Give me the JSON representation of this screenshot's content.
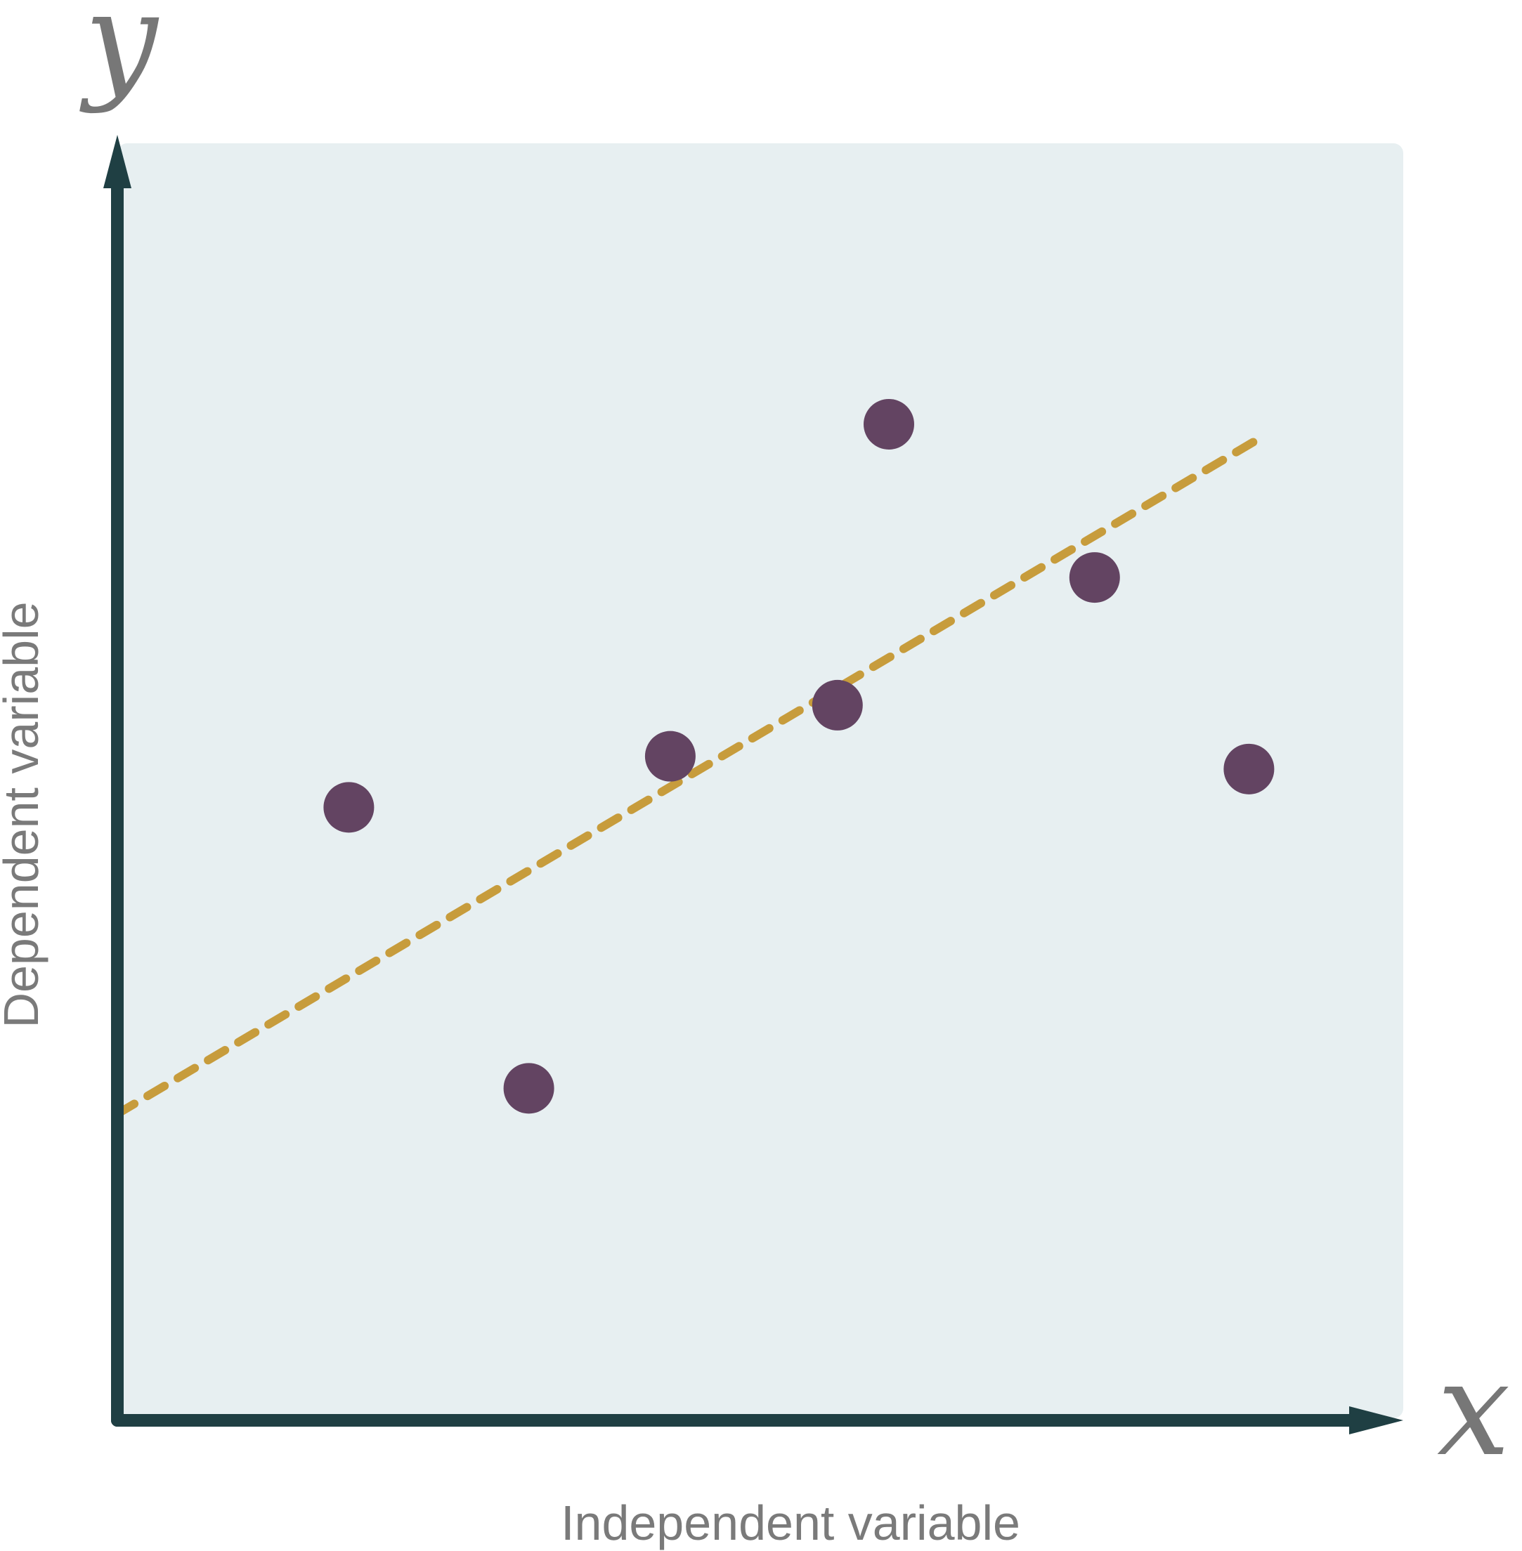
{
  "chart_data": {
    "type": "scatter",
    "title": "",
    "xlabel": "Independent variable",
    "ylabel": "Dependent variable",
    "x_symbol": "x",
    "y_symbol": "y",
    "xlim": [
      0,
      10
    ],
    "ylim": [
      0,
      10
    ],
    "grid": false,
    "series": [
      {
        "points": [
          {
            "x": 1.8,
            "y": 4.8
          },
          {
            "x": 3.2,
            "y": 2.6
          },
          {
            "x": 4.3,
            "y": 5.2
          },
          {
            "x": 5.6,
            "y": 5.6
          },
          {
            "x": 6.0,
            "y": 7.8
          },
          {
            "x": 7.6,
            "y": 6.6
          },
          {
            "x": 8.8,
            "y": 5.1
          }
        ]
      }
    ],
    "trendline": {
      "x": [
        0,
        8.9
      ],
      "y": [
        2.4,
        7.7
      ],
      "style": "dashed"
    },
    "colors": {
      "plot_background": "#e7eff1",
      "axis": "#1f3f43",
      "points": "#634462",
      "trendline": "#c79c3c",
      "labels": "#777777"
    }
  }
}
